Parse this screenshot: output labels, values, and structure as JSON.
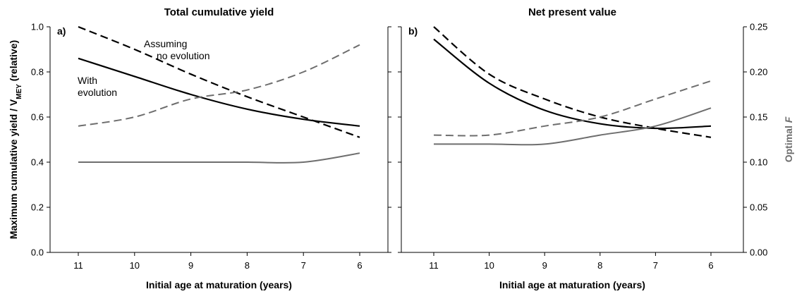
{
  "colors": {
    "black": "#000000",
    "gray": "#6e6e6e"
  },
  "chart_data": [
    {
      "type": "line",
      "panel_label": "a)",
      "title": "Total cumulative yield",
      "xlabel": "Initial age at maturation (years)",
      "ylabel_main": "Maximum cumulative yield / V",
      "ylabel_sub": "MEY",
      "ylabel_tail": " (relative)",
      "x_reversed": true,
      "xlim": [
        11,
        6
      ],
      "ylim": [
        0,
        1.0
      ],
      "y2lim": [
        0,
        0.25
      ],
      "x_ticks": [
        11,
        10,
        9,
        8,
        7,
        6
      ],
      "y_ticks": [
        "0.0",
        "0.2",
        "0.4",
        "0.6",
        "0.8",
        "1.0"
      ],
      "annotations": [
        {
          "lines": [
            "Assuming",
            "no evolution"
          ]
        },
        {
          "lines": [
            "With",
            "evolution"
          ]
        }
      ],
      "series": [
        {
          "style": "black-dashed",
          "axis": "left",
          "x": [
            11,
            10,
            9,
            8,
            7,
            6
          ],
          "values": [
            1.0,
            0.9,
            0.79,
            0.69,
            0.6,
            0.51
          ]
        },
        {
          "style": "black-solid",
          "axis": "left",
          "x": [
            11,
            10,
            9,
            8,
            7,
            6
          ],
          "values": [
            0.86,
            0.78,
            0.7,
            0.635,
            0.59,
            0.56
          ]
        },
        {
          "style": "gray-dashed",
          "axis": "right",
          "x": [
            11,
            10,
            9,
            8,
            7,
            6
          ],
          "values": [
            0.14,
            0.15,
            0.17,
            0.18,
            0.2,
            0.23
          ]
        },
        {
          "style": "gray-solid",
          "axis": "right",
          "x": [
            11,
            10,
            9,
            8,
            7,
            6
          ],
          "values": [
            0.1,
            0.1,
            0.1,
            0.1,
            0.1,
            0.11
          ]
        }
      ]
    },
    {
      "type": "line",
      "panel_label": "b)",
      "title": "Net present value",
      "xlabel": "Initial age at maturation (years)",
      "ylabel_right": "Optimal F",
      "x_reversed": true,
      "xlim": [
        11,
        6
      ],
      "ylim": [
        0,
        1.0
      ],
      "y2lim": [
        0,
        0.25
      ],
      "x_ticks": [
        11,
        10,
        9,
        8,
        7,
        6
      ],
      "y2_ticks": [
        "0.00",
        "0.05",
        "0.10",
        "0.15",
        "0.20",
        "0.25"
      ],
      "series": [
        {
          "style": "black-dashed",
          "axis": "left",
          "x": [
            11,
            10,
            9,
            8,
            7,
            6
          ],
          "values": [
            1.0,
            0.79,
            0.68,
            0.6,
            0.55,
            0.51
          ]
        },
        {
          "style": "black-solid",
          "axis": "left",
          "x": [
            11,
            10,
            9,
            8,
            7,
            6
          ],
          "values": [
            0.945,
            0.75,
            0.63,
            0.57,
            0.55,
            0.56
          ]
        },
        {
          "style": "gray-dashed",
          "axis": "right",
          "x": [
            11,
            10,
            9,
            8,
            7,
            6
          ],
          "values": [
            0.13,
            0.13,
            0.14,
            0.15,
            0.17,
            0.19
          ]
        },
        {
          "style": "gray-solid",
          "axis": "right",
          "x": [
            11,
            10,
            9,
            8,
            7,
            6
          ],
          "values": [
            0.12,
            0.12,
            0.12,
            0.13,
            0.14,
            0.16
          ]
        }
      ]
    }
  ]
}
